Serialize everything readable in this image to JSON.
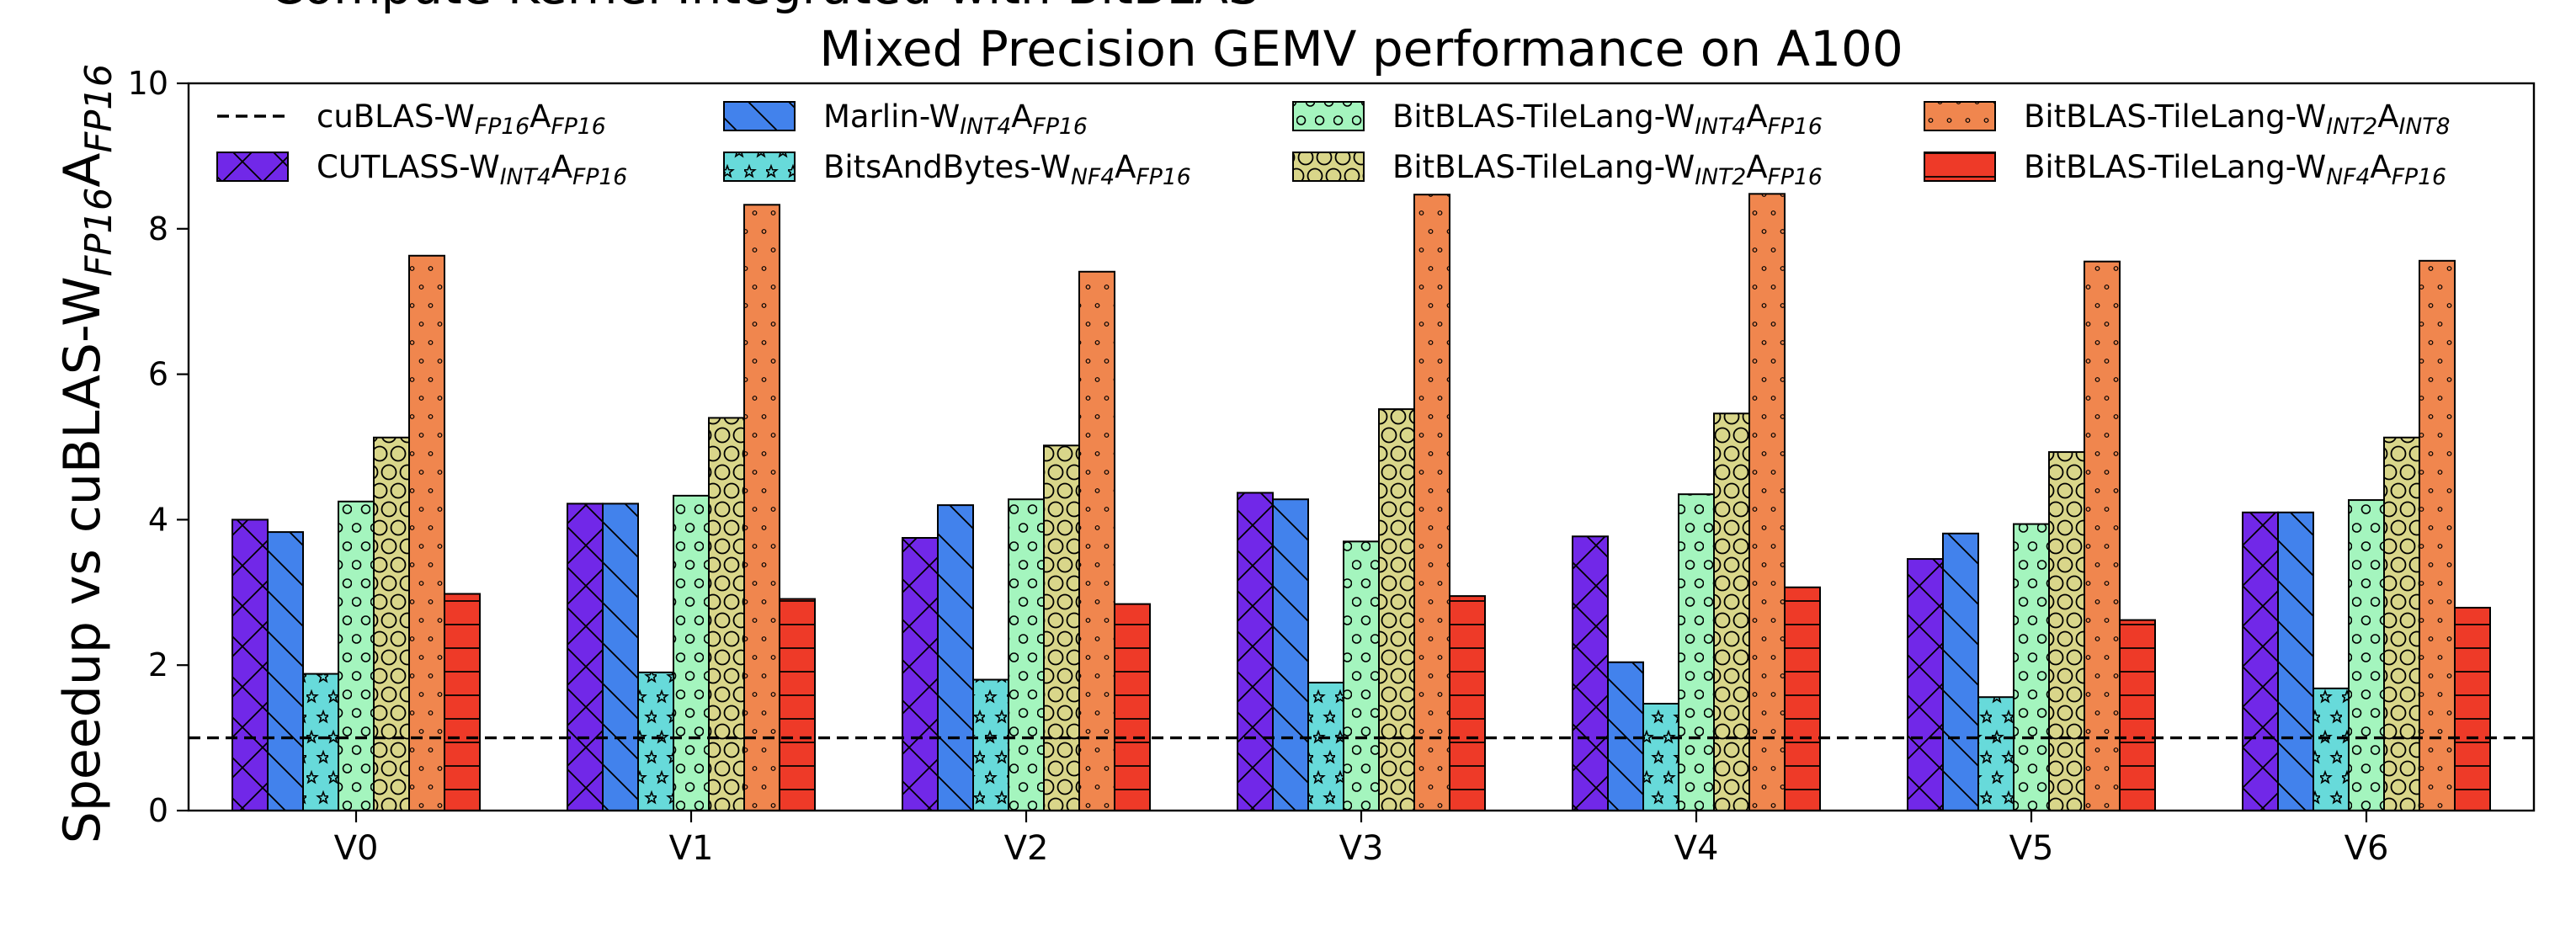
{
  "chart_data": {
    "type": "bar",
    "title": "Mixed Precision GEMV performance on A100",
    "clipped_top_text": "Compute Kernel Integrated with BitBLAS",
    "xlabel": "",
    "ylabel": {
      "base": "Speedup vs cuBLAS-W",
      "sub1": "FP16",
      "mid": "A",
      "sub2": "FP16"
    },
    "ylim": [
      0,
      10
    ],
    "yticks": [
      0,
      2,
      4,
      6,
      8,
      10
    ],
    "categories": [
      "V0",
      "V1",
      "V2",
      "V3",
      "V4",
      "V5",
      "V6"
    ],
    "baseline": {
      "value": 1.0,
      "label": {
        "base": "cuBLAS-W",
        "sub1": "FP16",
        "mid": "A",
        "sub2": "FP16"
      },
      "style": "dashed"
    },
    "series": [
      {
        "name": "CUTLASS-W_INT4A_FP16",
        "label": {
          "base": "CUTLASS-W",
          "sub1": "INT4",
          "mid": "A",
          "sub2": "FP16"
        },
        "color": "#7128E8",
        "hatch": "crosshatch",
        "values": [
          4.0,
          4.22,
          3.75,
          4.37,
          3.77,
          3.46,
          4.1
        ]
      },
      {
        "name": "Marlin-W_INT4A_FP16",
        "label": {
          "base": "Marlin-W",
          "sub1": "INT4",
          "mid": "A",
          "sub2": "FP16"
        },
        "color": "#4282EC",
        "hatch": "backslash",
        "values": [
          3.83,
          4.22,
          4.2,
          4.28,
          2.04,
          3.81,
          4.1
        ]
      },
      {
        "name": "BitsAndBytes-W_NF4A_FP16",
        "label": {
          "base": "BitsAndBytes-W",
          "sub1": "NF4",
          "mid": "A",
          "sub2": "FP16"
        },
        "color": "#67DADA",
        "hatch": "stars",
        "values": [
          1.88,
          1.9,
          1.8,
          1.76,
          1.47,
          1.56,
          1.68
        ]
      },
      {
        "name": "BitBLAS-TileLang-W_INT4A_FP16",
        "label": {
          "base": "BitBLAS-TileLang-W",
          "sub1": "INT4",
          "mid": "A",
          "sub2": "FP16"
        },
        "color": "#A4F5BE",
        "hatch": "small-circles",
        "values": [
          4.25,
          4.33,
          4.28,
          3.7,
          4.35,
          3.94,
          4.27
        ]
      },
      {
        "name": "BitBLAS-TileLang-W_INT2A_FP16",
        "label": {
          "base": "BitBLAS-TileLang-W",
          "sub1": "INT2",
          "mid": "A",
          "sub2": "FP16"
        },
        "color": "#D9D68A",
        "hatch": "big-circles",
        "values": [
          5.13,
          5.4,
          5.02,
          5.52,
          5.46,
          4.93,
          5.13
        ]
      },
      {
        "name": "BitBLAS-TileLang-W_INT2A_INT8",
        "label": {
          "base": "BitBLAS-TileLang-W",
          "sub1": "INT2",
          "mid": "A",
          "sub2": "INT8"
        },
        "color": "#F0864E",
        "hatch": "dots",
        "values": [
          7.63,
          8.33,
          7.41,
          8.47,
          8.48,
          7.55,
          7.56
        ]
      },
      {
        "name": "BitBLAS-TileLang-W_NF4A_FP16",
        "label": {
          "base": "BitBLAS-TileLang-W",
          "sub1": "NF4",
          "mid": "A",
          "sub2": "FP16"
        },
        "color": "#EE3A28",
        "hatch": "horizontal",
        "values": [
          2.98,
          2.91,
          2.84,
          2.95,
          3.07,
          2.62,
          2.79
        ]
      }
    ],
    "legend": {
      "placement": "top",
      "columns": 4,
      "order": [
        "baseline",
        "CUTLASS-W_INT4A_FP16",
        "Marlin-W_INT4A_FP16",
        "BitsAndBytes-W_NF4A_FP16",
        "BitBLAS-TileLang-W_INT4A_FP16",
        "BitBLAS-TileLang-W_INT2A_FP16",
        "BitBLAS-TileLang-W_INT2A_INT8",
        "BitBLAS-TileLang-W_NF4A_FP16"
      ]
    }
  }
}
